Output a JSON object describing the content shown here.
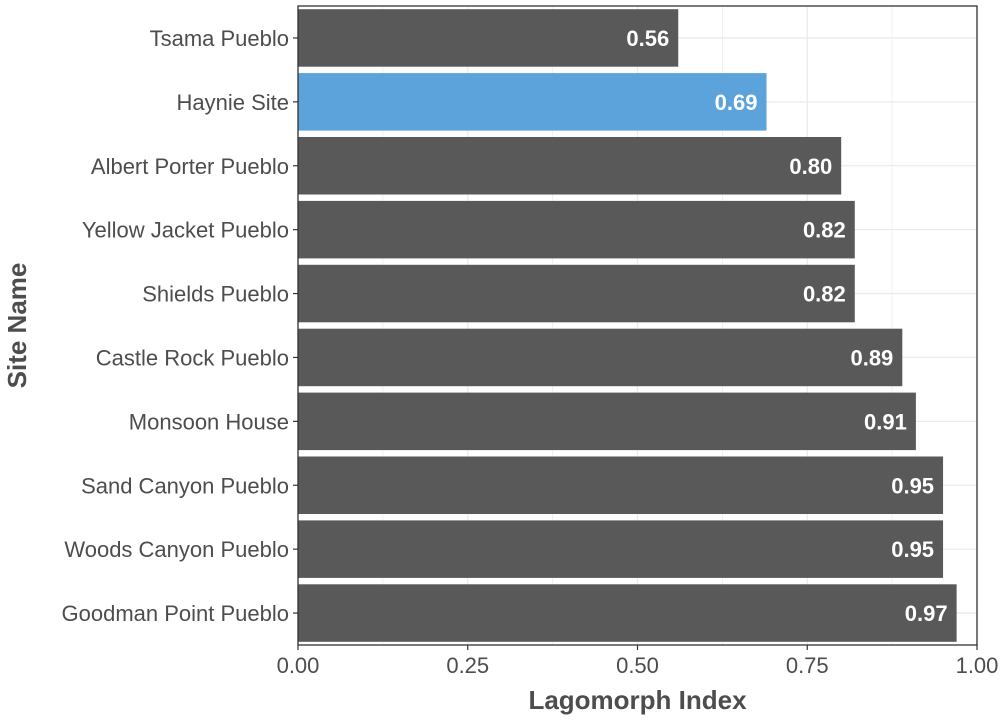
{
  "chart_data": {
    "type": "bar",
    "orientation": "horizontal",
    "xlabel": "Lagomorph Index",
    "ylabel": "Site Name",
    "xlim": [
      0,
      1
    ],
    "xticks": [
      "0.00",
      "0.25",
      "0.50",
      "0.75",
      "1.00"
    ],
    "categories": [
      "Tsama Pueblo",
      "Haynie Site",
      "Albert Porter Pueblo",
      "Yellow Jacket Pueblo",
      "Shields Pueblo",
      "Castle Rock Pueblo",
      "Monsoon House",
      "Sand Canyon Pueblo",
      "Woods Canyon Pueblo",
      "Goodman Point Pueblo"
    ],
    "values": [
      0.56,
      0.69,
      0.8,
      0.82,
      0.82,
      0.89,
      0.91,
      0.95,
      0.95,
      0.97
    ],
    "value_labels": [
      "0.56",
      "0.69",
      "0.80",
      "0.82",
      "0.82",
      "0.89",
      "0.91",
      "0.95",
      "0.95",
      "0.97"
    ],
    "highlight": "Haynie Site",
    "grid": true,
    "colors": {
      "bar": "#595959",
      "highlight": "#5ca3dc",
      "text": "#4d4d4d",
      "grid": "#ebebeb"
    }
  }
}
